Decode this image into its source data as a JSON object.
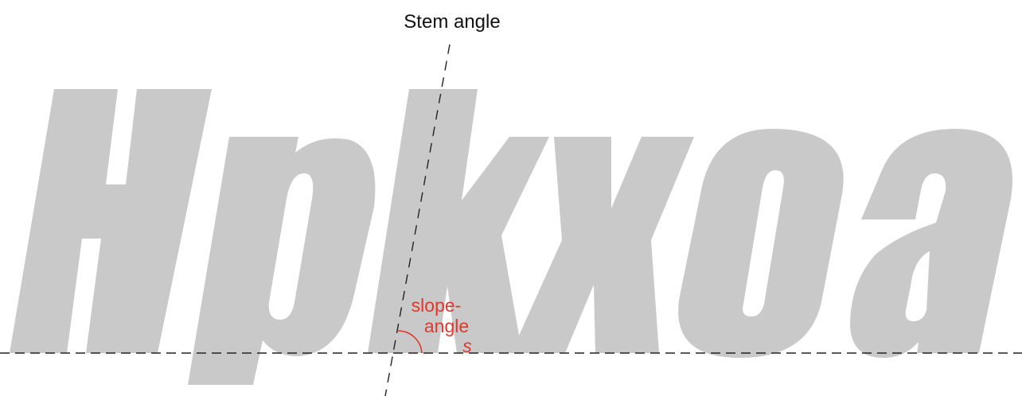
{
  "title": "Stem angle",
  "sample_text": "Hpkxoa",
  "annotation": {
    "line1": "slope-",
    "line2": "angle",
    "variable": "s"
  },
  "colors": {
    "glyphs": "#c9c9c9",
    "annotation": "#e0382d",
    "guides": "#222222",
    "text": "#111111"
  }
}
